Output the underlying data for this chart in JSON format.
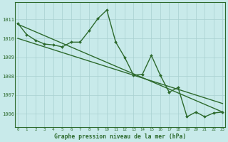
{
  "series": [
    {
      "x": [
        0,
        1,
        2,
        3,
        4,
        5,
        6,
        7,
        8,
        9,
        10,
        11,
        12,
        13,
        14,
        15,
        16,
        17,
        18,
        19,
        20,
        21,
        22,
        23
      ],
      "y": [
        1010.8,
        1010.2,
        1009.9,
        1009.7,
        1009.65,
        1009.55,
        1009.8,
        1009.8,
        1010.4,
        1011.05,
        1011.5,
        1009.8,
        1009.0,
        1008.05,
        1008.1,
        1009.1,
        1008.05,
        1007.15,
        1007.4,
        1005.85,
        1006.1,
        1005.85,
        1006.05,
        1006.1
      ],
      "has_marker": true,
      "linewidth": 1.0
    },
    {
      "x": [
        0,
        23
      ],
      "y": [
        1010.75,
        1006.1
      ],
      "has_marker": false,
      "linewidth": 1.0
    },
    {
      "x": [
        0,
        23
      ],
      "y": [
        1010.0,
        1006.55
      ],
      "has_marker": false,
      "linewidth": 1.0
    }
  ],
  "line_color": "#2d6a2d",
  "background_color": "#c8eaea",
  "grid_color": "#a8d0d0",
  "text_color": "#2d6a2d",
  "ylim": [
    1005.3,
    1011.9
  ],
  "yticks": [
    1006,
    1007,
    1008,
    1009,
    1010,
    1011
  ],
  "xlim": [
    -0.3,
    23.3
  ],
  "xticks": [
    0,
    1,
    2,
    3,
    4,
    5,
    6,
    7,
    8,
    9,
    10,
    11,
    12,
    13,
    14,
    15,
    16,
    17,
    18,
    19,
    20,
    21,
    22,
    23
  ],
  "xlabel": "Graphe pression niveau de la mer (hPa)",
  "figsize": [
    3.2,
    2.0
  ],
  "dpi": 100
}
